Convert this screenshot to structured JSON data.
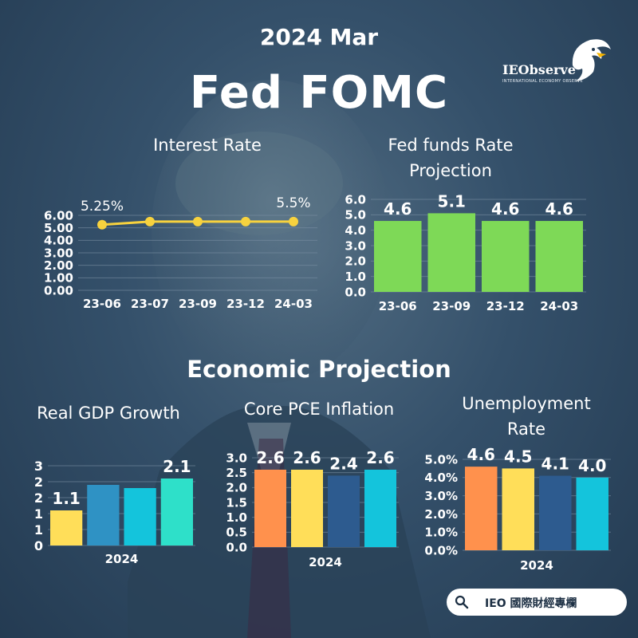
{
  "header": {
    "date": "2024 Mar",
    "title": "Fed FOMC"
  },
  "logo": {
    "name": "IEObserve",
    "tagline": "INTERNATIONAL ECONOMY OBSERVE",
    "icon": "eagle-icon"
  },
  "section": {
    "title": "Economic Projection"
  },
  "footer": {
    "label": "IEO 國際財經專欄",
    "icon": "search-icon"
  },
  "colors": {
    "line": "#f7d23e",
    "green": "#7ed957",
    "orange": "#ff914d",
    "yellow": "#ffde59",
    "blue": "#2f92c4",
    "cyan": "#14c4dc",
    "teal": "#2ee0c9",
    "navy": "#2d5b8f"
  },
  "chart_data": [
    {
      "id": "interest",
      "type": "line",
      "title": "Interest Rate",
      "categories": [
        "23-06",
        "23-07",
        "23-09",
        "23-12",
        "24-03"
      ],
      "values": [
        5.25,
        5.5,
        5.5,
        5.5,
        5.5
      ],
      "data_labels": [
        "5.25%",
        "",
        "",
        "",
        "5.5%"
      ],
      "yticks": [
        "0.00",
        "1.00",
        "2.00",
        "3.00",
        "4.00",
        "5.00",
        "6.00"
      ],
      "ylim": [
        0,
        6
      ],
      "grid": true
    },
    {
      "id": "fedfunds",
      "type": "bar",
      "title": "Fed funds Rate Projection",
      "categories": [
        "23-06",
        "23-09",
        "23-12",
        "24-03"
      ],
      "values": [
        4.6,
        5.1,
        4.6,
        4.6
      ],
      "data_labels": [
        "4.6",
        "5.1",
        "4.6",
        "4.6"
      ],
      "yticks": [
        "0.0",
        "1.0",
        "2.0",
        "3.0",
        "4.0",
        "5.0",
        "6.0"
      ],
      "ylim": [
        0,
        6
      ],
      "grid": true
    },
    {
      "id": "gdp",
      "type": "bar",
      "title": "Real GDP Growth",
      "xlabel": "2024",
      "values": [
        1.1,
        1.9,
        1.8,
        2.1
      ],
      "data_labels": [
        "1.1",
        "",
        "",
        "2.1"
      ],
      "bar_colors": [
        "#ffde59",
        "#2f92c4",
        "#14c4dc",
        "#2ee0c9"
      ],
      "yticks": [
        "0",
        "1",
        "1",
        "2",
        "2",
        "3"
      ],
      "ylim": [
        0,
        2.5
      ],
      "grid": true
    },
    {
      "id": "pce",
      "type": "bar",
      "title": "Core PCE Inflation",
      "xlabel": "2024",
      "values": [
        2.6,
        2.6,
        2.4,
        2.6
      ],
      "data_labels": [
        "2.6",
        "2.6",
        "2.4",
        "2.6"
      ],
      "bar_colors": [
        "#ff914d",
        "#ffde59",
        "#2d5b8f",
        "#14c4dc"
      ],
      "yticks": [
        "0.0",
        "0.5",
        "1.0",
        "1.5",
        "2.0",
        "2.5",
        "3.0"
      ],
      "ylim": [
        0,
        3
      ],
      "grid": true
    },
    {
      "id": "unemp",
      "type": "bar",
      "title": "Unemployment Rate",
      "xlabel": "2024",
      "values": [
        4.6,
        4.5,
        4.1,
        4.0
      ],
      "data_labels": [
        "4.6",
        "4.5",
        "4.1",
        "4.0"
      ],
      "bar_colors": [
        "#ff914d",
        "#ffde59",
        "#2d5b8f",
        "#14c4dc"
      ],
      "yticks": [
        "0.0%",
        "1.0%",
        "2.0%",
        "3.0%",
        "4.0%",
        "5.0%"
      ],
      "ylim": [
        0,
        5
      ],
      "grid": true
    }
  ]
}
